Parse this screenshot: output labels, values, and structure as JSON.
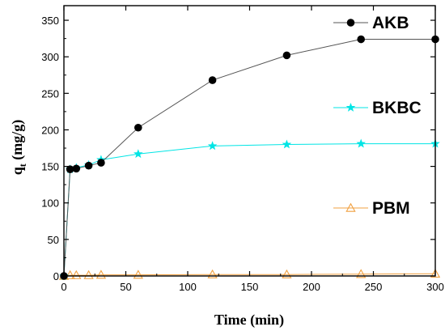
{
  "chart_data": {
    "type": "line",
    "xlabel": "Time (min)",
    "ylabel_main": "q",
    "ylabel_sub": "t",
    "ylabel_tail": " (mg/g)",
    "xlim": [
      0,
      300
    ],
    "ylim": [
      0,
      370
    ],
    "xticks": [
      0,
      50,
      100,
      150,
      200,
      250,
      300
    ],
    "yticks": [
      0,
      50,
      100,
      150,
      200,
      250,
      300,
      350
    ],
    "grid": false,
    "legend": "right",
    "series": [
      {
        "name": "AKB",
        "color": "#000000",
        "line_color": "#555555",
        "marker": "circle",
        "x": [
          0,
          5,
          10,
          20,
          30,
          60,
          120,
          180,
          240,
          300
        ],
        "y": [
          0,
          146,
          147,
          151,
          155,
          203,
          268,
          302,
          324,
          324
        ]
      },
      {
        "name": "BKBC",
        "color": "#00e5e5",
        "line_color": "#00e5e5",
        "marker": "star",
        "x": [
          0,
          5,
          10,
          20,
          30,
          60,
          120,
          180,
          240,
          300
        ],
        "y": [
          0,
          146,
          148,
          152,
          159,
          167,
          178,
          180,
          181,
          181
        ]
      },
      {
        "name": "PBM",
        "color": "#f0a040",
        "line_color": "#f0a040",
        "marker": "triangle-open",
        "x": [
          0,
          5,
          10,
          20,
          30,
          60,
          120,
          180,
          240,
          300
        ],
        "y": [
          0,
          1,
          1,
          1,
          1.5,
          1.5,
          2,
          2,
          2.5,
          3
        ]
      }
    ]
  }
}
